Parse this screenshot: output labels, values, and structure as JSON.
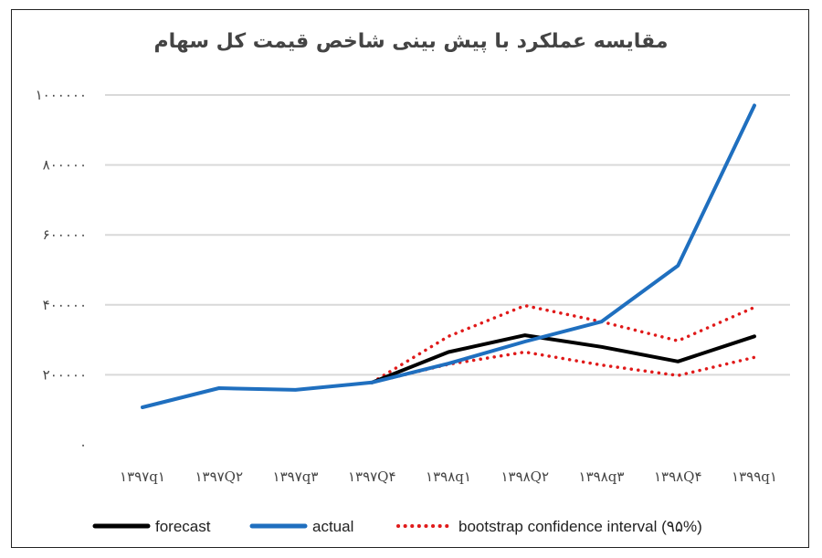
{
  "chart_data": {
    "type": "line",
    "title": "مقایسه عملکرد با پیش بینی شاخص قیمت کل سهام",
    "categories": [
      "۱۳۹۷q۱",
      "۱۳۹۷Q۲",
      "۱۳۹۷q۳",
      "۱۳۹۷Q۴",
      "۱۳۹۸q۱",
      "۱۳۹۸Q۲",
      "۱۳۹۸q۳",
      "۱۳۹۸Q۴",
      "۱۳۹۹q۱"
    ],
    "ylim": [
      0,
      1000000
    ],
    "yticks": [
      {
        "value": 0,
        "label": "۰"
      },
      {
        "value": 200000,
        "label": "۲۰۰۰۰۰"
      },
      {
        "value": 400000,
        "label": "۴۰۰۰۰۰"
      },
      {
        "value": 600000,
        "label": "۶۰۰۰۰۰"
      },
      {
        "value": 800000,
        "label": "۸۰۰۰۰۰"
      },
      {
        "value": 1000000,
        "label": "۱۰۰۰۰۰۰"
      }
    ],
    "grid": true,
    "legend_position": "bottom",
    "series": [
      {
        "name": "forecast",
        "color": "#000000",
        "style": "solid",
        "values": [
          null,
          null,
          null,
          178000,
          265000,
          313000,
          280000,
          238000,
          310000
        ]
      },
      {
        "name": "actual",
        "color": "#1f6fbf",
        "style": "solid",
        "values": [
          107000,
          162000,
          157000,
          178000,
          232000,
          295000,
          352000,
          512000,
          970000
        ]
      },
      {
        "name": "bootstrap confidence interval (۹۵%)",
        "color": "#e01a1a",
        "style": "dotted",
        "values": [
          null,
          null,
          null,
          178000,
          310000,
          398000,
          352000,
          297000,
          393000
        ]
      },
      {
        "name": "bootstrap confidence interval (۹۵%)",
        "color": "#e01a1a",
        "style": "dotted",
        "hide_in_legend": true,
        "values": [
          null,
          null,
          null,
          178000,
          230000,
          265000,
          228000,
          198000,
          250000
        ]
      }
    ]
  }
}
